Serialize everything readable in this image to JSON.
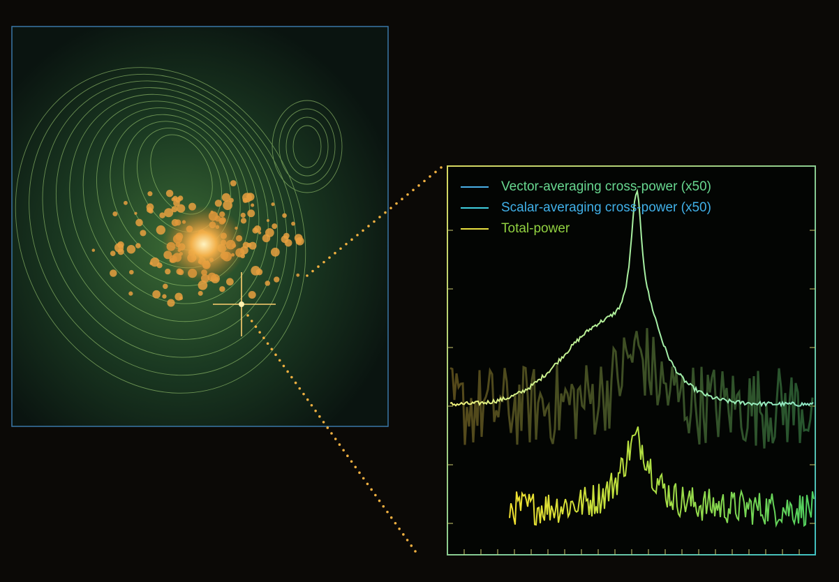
{
  "legend": {
    "entries": [
      "Vector-averaging cross-power (x50)",
      "Scalar-averaging cross-power (x50)",
      "Total-power"
    ]
  }
}
